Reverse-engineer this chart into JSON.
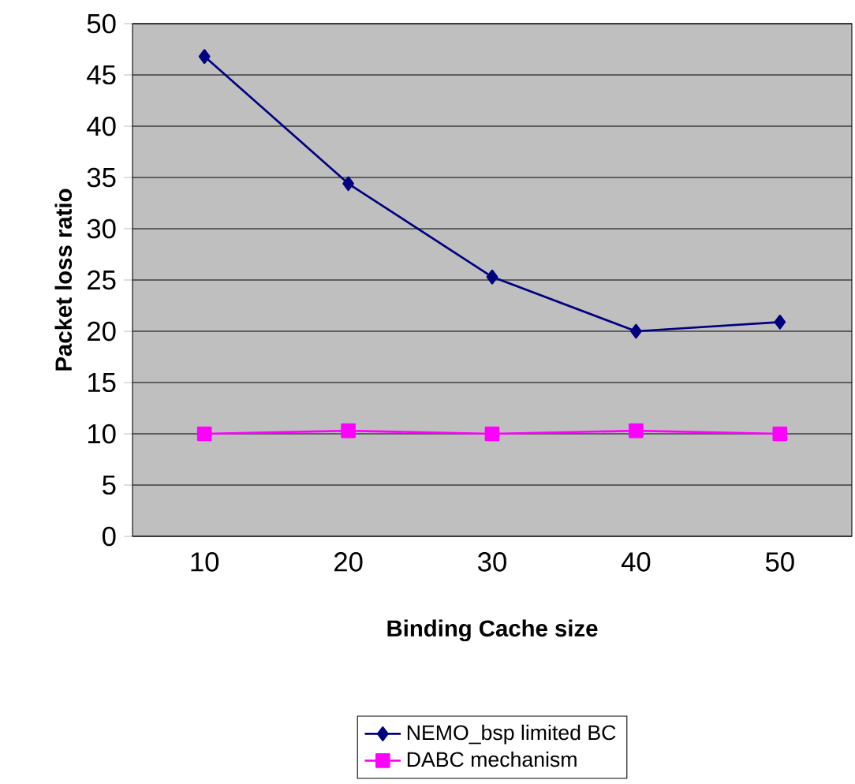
{
  "chart_data": {
    "type": "line",
    "xlabel": "Binding Cache size",
    "ylabel": "Packet loss ratio",
    "categories": [
      "10",
      "20",
      "30",
      "40",
      "50"
    ],
    "series": [
      {
        "name": "NEMO_bsp limited BC",
        "color": "#000080",
        "marker": "diamond",
        "values": [
          46.8,
          34.4,
          25.3,
          20.0,
          20.9
        ]
      },
      {
        "name": "DABC mechanism",
        "color": "#ff00ff",
        "marker": "square",
        "values": [
          10.0,
          10.3,
          10.0,
          10.3,
          10.0
        ]
      }
    ],
    "ylim": [
      0,
      50
    ],
    "yticks": [
      0,
      5,
      10,
      15,
      20,
      25,
      30,
      35,
      40,
      45,
      50
    ],
    "grid": "y",
    "legend": "bottom"
  }
}
